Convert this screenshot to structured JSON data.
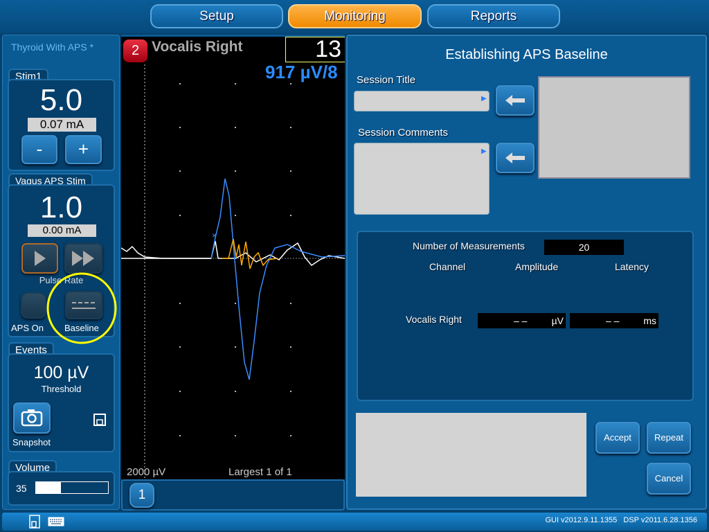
{
  "nav": {
    "tabs": [
      {
        "label": "Setup"
      },
      {
        "label": "Monitoring",
        "active": true
      },
      {
        "label": "Reports"
      }
    ]
  },
  "left": {
    "procedure": "Thyroid With APS *",
    "stim1": {
      "title": "Stim1",
      "value": "5.0",
      "current": "0.07 mA",
      "minus": "-",
      "plus": "+"
    },
    "vagus": {
      "title": "Vagus APS Stim",
      "value": "1.0",
      "current": "0.00 mA",
      "pulse_rate": "Pulse Rate",
      "aps_on": "APS On",
      "baseline": "Baseline"
    },
    "events": {
      "title": "Events",
      "threshold_value": "100 µV",
      "threshold_label": "Threshold",
      "snapshot": "Snapshot"
    },
    "volume": {
      "title": "Volume",
      "value": "35",
      "level_percent": 35
    }
  },
  "waveform": {
    "channel_number": "2",
    "channel_name": "Vocalis Right",
    "count": "13",
    "scale": "917 µV/8",
    "amplitude_scale": "2000 µV",
    "largest": "Largest 1 of 1",
    "page_button": "1"
  },
  "dialog": {
    "title": "Establishing APS Baseline",
    "session_title_label": "Session Title",
    "session_title_value": "",
    "session_comments_label": "Session Comments",
    "session_comments_value": "",
    "measurements_label": "Number of Measurements",
    "measurements_value": "20",
    "headers": {
      "channel": "Channel",
      "amplitude": "Amplitude",
      "latency": "Latency"
    },
    "rows": [
      {
        "channel": "Vocalis Right",
        "amplitude": "– –",
        "amplitude_unit": "µV",
        "latency": "– –",
        "latency_unit": "ms"
      }
    ],
    "accept": "Accept",
    "repeat": "Repeat",
    "cancel": "Cancel"
  },
  "status": {
    "version": "GUI v2012.9.11.1355   DSP v2011.6.28.1356"
  },
  "colors": {
    "accent_active": "#f39200",
    "highlight_circle": "#ffff00",
    "trace_blue": "#3a8cff",
    "trace_orange": "#ffaa00",
    "trace_white": "#ffffff"
  }
}
